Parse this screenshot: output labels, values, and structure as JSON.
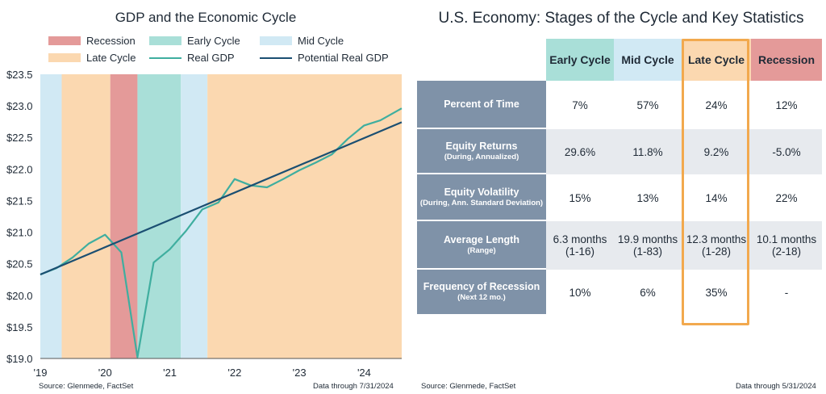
{
  "left": {
    "title": "GDP and the Economic Cycle",
    "legend": [
      {
        "label": "Recession",
        "color": "#e49a99",
        "kind": "swatch"
      },
      {
        "label": "Early Cycle",
        "color": "#a9dfd8",
        "kind": "swatch"
      },
      {
        "label": "Mid Cycle",
        "color": "#d1e9f4",
        "kind": "swatch"
      },
      {
        "label": "Late Cycle",
        "color": "#fbd8b0",
        "kind": "swatch"
      },
      {
        "label": "Real GDP",
        "color": "#3fae9f",
        "kind": "line"
      },
      {
        "label": "Potential Real GDP",
        "color": "#1b4f72",
        "kind": "line"
      }
    ],
    "source": "Source: Glenmede, FactSet",
    "data_through": "Data through 7/31/2024"
  },
  "chart_data": {
    "type": "line",
    "title": "GDP and the Economic Cycle",
    "xlabel": "",
    "ylabel": "",
    "ylim": [
      19.0,
      23.5
    ],
    "xlim": [
      2019.0,
      2024.58
    ],
    "y_ticks": [
      "$23.5",
      "$23.0",
      "$22.5",
      "$22.0",
      "$21.5",
      "$21.0",
      "$20.5",
      "$20.0",
      "$19.5",
      "$19.0"
    ],
    "y_tick_values": [
      23.5,
      23.0,
      22.5,
      22.0,
      21.5,
      21.0,
      20.5,
      20.0,
      19.5,
      19.0
    ],
    "x_ticks": [
      "'19",
      "'20",
      "'21",
      "'22",
      "'23",
      "'24"
    ],
    "x_tick_values": [
      2019,
      2020,
      2021,
      2022,
      2023,
      2024
    ],
    "grid": false,
    "legend_position": "top",
    "phases": [
      {
        "phase": "Mid Cycle",
        "start": 2019.0,
        "end": 2019.33,
        "color": "#d1e9f4"
      },
      {
        "phase": "Late Cycle",
        "start": 2019.33,
        "end": 2020.08,
        "color": "#fbd8b0"
      },
      {
        "phase": "Recession",
        "start": 2020.08,
        "end": 2020.5,
        "color": "#e49a99"
      },
      {
        "phase": "Early Cycle",
        "start": 2020.5,
        "end": 2021.17,
        "color": "#a9dfd8"
      },
      {
        "phase": "Mid Cycle",
        "start": 2021.17,
        "end": 2021.58,
        "color": "#d1e9f4"
      },
      {
        "phase": "Late Cycle",
        "start": 2021.58,
        "end": 2024.58,
        "color": "#fbd8b0"
      }
    ],
    "series": [
      {
        "name": "Real GDP",
        "color": "#3fae9f",
        "x": [
          2019.0,
          2019.25,
          2019.5,
          2019.75,
          2020.0,
          2020.25,
          2020.5,
          2020.75,
          2021.0,
          2021.25,
          2021.5,
          2021.75,
          2022.0,
          2022.25,
          2022.5,
          2022.75,
          2023.0,
          2023.25,
          2023.5,
          2023.75,
          2024.0,
          2024.25,
          2024.58
        ],
        "values": [
          20.33,
          20.43,
          20.6,
          20.82,
          20.96,
          20.68,
          19.02,
          20.52,
          20.73,
          21.02,
          21.36,
          21.47,
          21.84,
          21.74,
          21.71,
          21.84,
          21.98,
          22.1,
          22.23,
          22.48,
          22.69,
          22.77,
          22.96
        ]
      },
      {
        "name": "Potential Real GDP",
        "color": "#1b4f72",
        "x": [
          2019.0,
          2024.58
        ],
        "values": [
          20.33,
          22.74
        ]
      }
    ]
  },
  "right": {
    "title": "U.S. Economy: Stages of the Cycle and Key Statistics",
    "columns": [
      {
        "label": "Early Cycle",
        "color": "#a9dfd8"
      },
      {
        "label": "Mid Cycle",
        "color": "#d1e9f4"
      },
      {
        "label": "Late Cycle",
        "color": "#fbd8b0"
      },
      {
        "label": "Recession",
        "color": "#e49a99"
      }
    ],
    "rows": [
      {
        "label": "Percent of Time",
        "sub": "",
        "values": [
          "7%",
          "57%",
          "24%",
          "12%"
        ]
      },
      {
        "label": "Equity Returns",
        "sub": "(During, Annualized)",
        "values": [
          "29.6%",
          "11.8%",
          "9.2%",
          "-5.0%"
        ]
      },
      {
        "label": "Equity Volatility",
        "sub": "(During, Ann. Standard Deviation)",
        "values": [
          "15%",
          "13%",
          "14%",
          "22%"
        ]
      },
      {
        "label": "Average Length",
        "sub": "(Range)",
        "values": [
          "6.3 months (1-16)",
          "19.9 months (1-83)",
          "12.3 months (1-28)",
          "10.1 months (2-18)"
        ]
      },
      {
        "label": "Frequency of Recession",
        "sub": "(Next 12 mo.)",
        "values": [
          "10%",
          "6%",
          "35%",
          "-"
        ]
      }
    ],
    "highlight_color": "#f2a94e",
    "source": "Source: Glenmede, FactSet",
    "data_through": "Data through 5/31/2024"
  }
}
